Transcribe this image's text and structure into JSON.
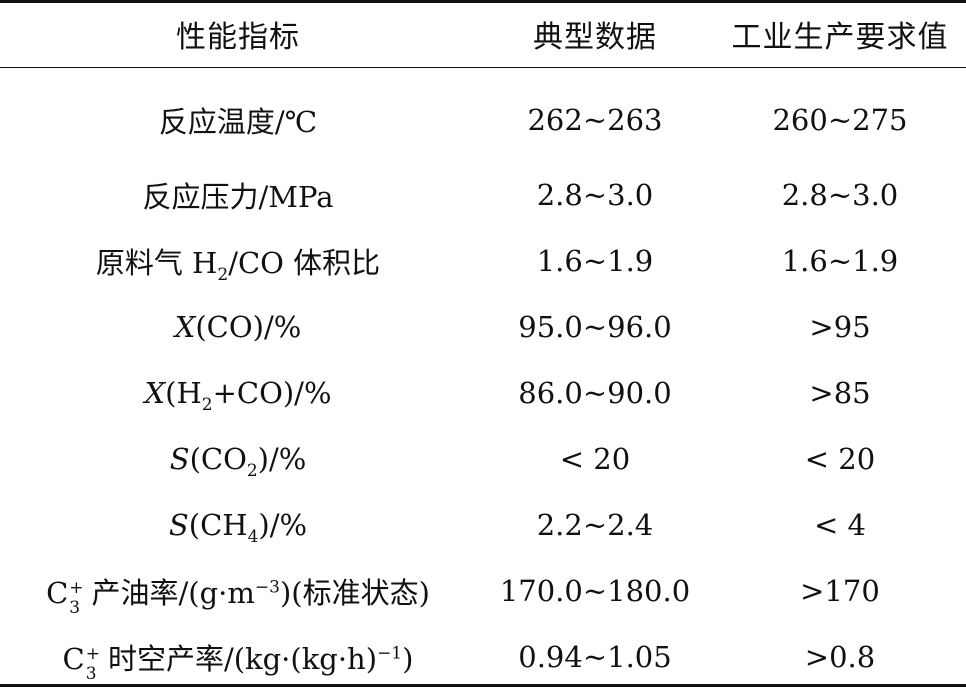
{
  "table": {
    "headers": [
      "性能指标",
      "典型数据",
      "工业生产要求值"
    ],
    "rows": [
      {
        "typical": "262~263",
        "required": "260~275"
      },
      {
        "typical": "2.8~3.0",
        "required": "2.8~3.0"
      },
      {
        "typical": "1.6~1.9",
        "required": "1.6~1.9"
      },
      {
        "typical": "95.0~96.0",
        "required": ">95"
      },
      {
        "typical": "86.0~90.0",
        "required": ">85"
      },
      {
        "typical": "< 20",
        "required": "< 20"
      },
      {
        "typical": "2.2~2.4",
        "required": "< 4"
      },
      {
        "typical": "170.0~180.0",
        "required": ">170"
      },
      {
        "typical": "0.94~1.05",
        "required": ">0.8"
      }
    ],
    "labels": {
      "temp": "反应温度/℃",
      "pressure": "反应压力/MPa",
      "ratio_prefix": "原料气 H",
      "ratio_sub": "2",
      "ratio_suffix": "/CO 体积比",
      "xco_var": "X",
      "xco_rest": "(CO)/%",
      "xh2_var": "X",
      "xh2_pre": "(H",
      "xh2_sub": "2",
      "xh2_post": "+CO)/%",
      "sco2_var": "S",
      "sco2_pre": "(CO",
      "sco2_sub": "2",
      "sco2_post": ")/%",
      "sch4_var": "S",
      "sch4_pre": "(CH",
      "sch4_sub": "4",
      "sch4_post": ")/%",
      "c3_base": "C",
      "c3_sup": "+",
      "c3_sub": "3",
      "oil_rest_a": " 产油率/(g·m",
      "oil_exp": "−3",
      "oil_rest_b": ")(标准状态)",
      "st_rest_a": " 时空产率/(kg·(kg·h)",
      "st_exp": "−1",
      "st_rest_b": ")"
    }
  }
}
